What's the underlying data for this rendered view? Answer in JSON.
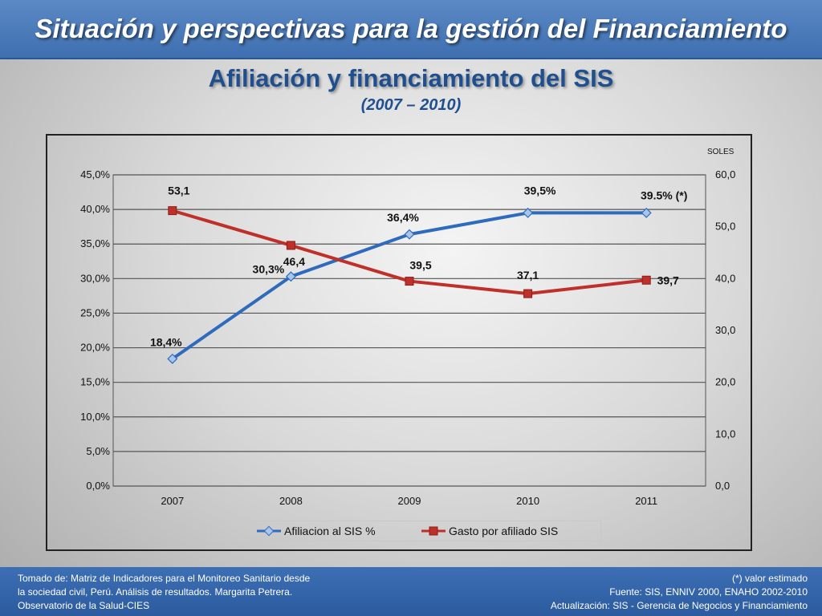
{
  "header": {
    "title": "Situación y perspectivas para la gestión del Financiamiento",
    "subtitle": "Afiliación y financiamiento del SIS",
    "period": "(2007 – 2010)"
  },
  "chart_data": {
    "type": "line",
    "categories": [
      "2007",
      "2008",
      "2009",
      "2010",
      "2011"
    ],
    "y_left": {
      "ylim": [
        0,
        45
      ],
      "ticks": [
        "0,0%",
        "5,0%",
        "10,0%",
        "15,0%",
        "20,0%",
        "25,0%",
        "30,0%",
        "35,0%",
        "40,0%",
        "45,0%"
      ]
    },
    "y_right": {
      "label": "SOLES",
      "ylim": [
        0,
        60
      ],
      "ticks": [
        "0,0",
        "10,0",
        "20,0",
        "30,0",
        "40,0",
        "50,0",
        "60,0"
      ]
    },
    "series": [
      {
        "name": "Afiliacion al SIS %",
        "axis": "left",
        "color": "#2e6bbd",
        "values": [
          18.4,
          30.3,
          36.4,
          39.5,
          39.5
        ],
        "labels": [
          "18,4%",
          "30,3%",
          "36,4%",
          "39,5%",
          "39.5% (*)"
        ]
      },
      {
        "name": "Gasto por afiliado SIS",
        "axis": "right",
        "color": "#c0302a",
        "values": [
          53.1,
          46.4,
          39.5,
          37.1,
          39.7
        ],
        "labels": [
          "53,1",
          "46,4",
          "39,5",
          "37,1",
          "39,7"
        ]
      }
    ],
    "grid": true,
    "legend": "bottom"
  },
  "footer": {
    "left": [
      "Tomado de: Matriz de Indicadores para el Monitoreo Sanitario desde",
      "la sociedad civil, Perú. Análisis de resultados. Margarita Petrera.",
      "Observatorio de la Salud-CIES"
    ],
    "right": [
      "(*) valor estimado",
      "Fuente: SIS, ENNIV 2000, ENAHO 2002-2010",
      "Actualización:  SIS - Gerencia  de Negocios y Financiamiento"
    ]
  }
}
